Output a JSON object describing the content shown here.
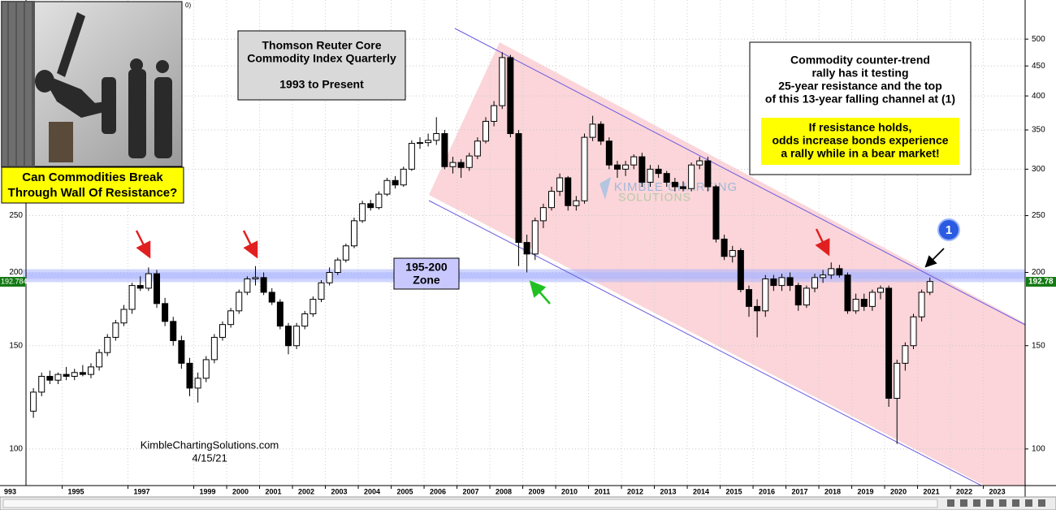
{
  "chart_data": {
    "type": "candlestick",
    "corner_text": "0)",
    "title_lines": [
      "Thomson Reuter Core",
      "Commodity Index Quarterly"
    ],
    "subtitle": "1993 to Present",
    "caption_lines": [
      "Can Commodities Break",
      "Through Wall Of Resistance?"
    ],
    "note_lines": [
      "Commodity counter-trend",
      "rally has it testing",
      "25-year resistance and the top",
      "of this 13-year falling channel at (1)"
    ],
    "highlight_lines": [
      "If resistance holds,",
      "odds increase bonds experience",
      "a rally while in a bear market!"
    ],
    "zone": {
      "low": 195,
      "high": 200,
      "label_lines": [
        "195-200",
        "Zone"
      ]
    },
    "watermark_lines": [
      "KIMBLE CHARTING",
      "SOLUTIONS"
    ],
    "source": "KimbleChartingSolutions.com",
    "date": "4/15/21",
    "marker_label": "1",
    "last_value": 192.78,
    "last_value_left": 192.784,
    "log_scale": true,
    "grid": true,
    "up_color": "#ffffff",
    "down_color": "#000000",
    "xlim": [
      1993.9,
      2024.27
    ],
    "xticks": [
      {
        "value": 1993,
        "label": "993"
      },
      1995,
      1997,
      1999,
      2000,
      2001,
      2002,
      2003,
      2004,
      2005,
      2006,
      2007,
      2008,
      2009,
      2010,
      2011,
      2012,
      2013,
      2014,
      2015,
      2016,
      2017,
      2018,
      2019,
      2020,
      2021,
      2022,
      2023
    ],
    "ylim": [
      86.6,
      583
    ],
    "yticks": [
      100,
      150,
      200,
      250,
      300,
      350,
      400,
      450,
      500
    ],
    "x": [
      1994,
      1994.25,
      1994.5,
      1994.75,
      1995,
      1995.25,
      1995.5,
      1995.75,
      1996,
      1996.25,
      1996.5,
      1996.75,
      1997,
      1997.25,
      1997.5,
      1997.75,
      1998,
      1998.25,
      1998.5,
      1998.75,
      1999,
      1999.25,
      1999.5,
      1999.75,
      2000,
      2000.25,
      2000.5,
      2000.75,
      2001,
      2001.25,
      2001.5,
      2001.75,
      2002,
      2002.25,
      2002.5,
      2002.75,
      2003,
      2003.25,
      2003.5,
      2003.75,
      2004,
      2004.25,
      2004.5,
      2004.75,
      2005,
      2005.25,
      2005.5,
      2005.75,
      2006,
      2006.25,
      2006.5,
      2006.75,
      2007,
      2007.25,
      2007.5,
      2007.75,
      2008,
      2008.25,
      2008.5,
      2008.75,
      2009,
      2009.25,
      2009.5,
      2009.75,
      2010,
      2010.25,
      2010.5,
      2010.75,
      2011,
      2011.25,
      2011.5,
      2011.75,
      2012,
      2012.25,
      2012.5,
      2012.75,
      2013,
      2013.25,
      2013.5,
      2013.75,
      2014,
      2014.25,
      2014.5,
      2014.75,
      2015,
      2015.25,
      2015.5,
      2015.75,
      2016,
      2016.25,
      2016.5,
      2016.75,
      2017,
      2017.25,
      2017.5,
      2017.75,
      2018,
      2018.25,
      2018.5,
      2018.75,
      2019,
      2019.25,
      2019.5,
      2019.75,
      2020,
      2020.25,
      2020.5,
      2020.75,
      2021,
      2021.25
    ],
    "candles": {
      "open": [
        116,
        125,
        133,
        131,
        134,
        133,
        135,
        134,
        138,
        146,
        155,
        164,
        173,
        190,
        188,
        199,
        177,
        165,
        153,
        140,
        127,
        132,
        142,
        155,
        163,
        172,
        185,
        195,
        196,
        185,
        178,
        162,
        150,
        162,
        170,
        180,
        192,
        200,
        210,
        222,
        245,
        262,
        258,
        272,
        287,
        282,
        300,
        332,
        333,
        336,
        345,
        303,
        308,
        302,
        316,
        335,
        362,
        385,
        465,
        345,
        225,
        215,
        245,
        258,
        275,
        290,
        260,
        265,
        340,
        358,
        335,
        305,
        300,
        305,
        315,
        285,
        300,
        295,
        285,
        280,
        278,
        305,
        310,
        280,
        228,
        213,
        218,
        187,
        175,
        172,
        195,
        190,
        196,
        190,
        176,
        188,
        196,
        198,
        203,
        198,
        172,
        180,
        175,
        185,
        188,
        122,
        140,
        150,
        168,
        185
      ],
      "high": [
        127,
        135,
        136,
        135,
        138,
        137,
        139,
        140,
        148,
        157,
        166,
        176,
        192,
        197,
        204,
        202,
        181,
        168,
        156,
        143,
        135,
        144,
        157,
        165,
        174,
        187,
        197,
        205,
        200,
        188,
        180,
        164,
        164,
        172,
        182,
        194,
        204,
        212,
        224,
        248,
        265,
        266,
        275,
        290,
        292,
        303,
        336,
        340,
        345,
        368,
        350,
        315,
        312,
        320,
        340,
        368,
        392,
        475,
        470,
        350,
        232,
        248,
        262,
        280,
        295,
        292,
        270,
        345,
        370,
        362,
        340,
        310,
        310,
        318,
        320,
        305,
        305,
        298,
        290,
        286,
        308,
        315,
        315,
        282,
        232,
        222,
        220,
        190,
        180,
        198,
        198,
        199,
        200,
        192,
        190,
        199,
        202,
        208,
        206,
        200,
        184,
        184,
        187,
        190,
        190,
        142,
        152,
        170,
        187,
        196
      ],
      "low": [
        113,
        123,
        129,
        129,
        131,
        131,
        133,
        132,
        136,
        144,
        153,
        162,
        170,
        186,
        186,
        174,
        162,
        150,
        137,
        123,
        120,
        130,
        140,
        153,
        161,
        170,
        183,
        190,
        183,
        176,
        160,
        145,
        148,
        160,
        168,
        178,
        190,
        198,
        208,
        220,
        243,
        255,
        256,
        270,
        278,
        280,
        298,
        325,
        328,
        330,
        300,
        295,
        290,
        298,
        312,
        332,
        355,
        380,
        340,
        205,
        200,
        210,
        238,
        255,
        270,
        255,
        255,
        262,
        335,
        330,
        300,
        290,
        292,
        300,
        280,
        280,
        290,
        280,
        275,
        275,
        275,
        300,
        275,
        225,
        210,
        208,
        185,
        168,
        155,
        168,
        186,
        186,
        186,
        172,
        174,
        185,
        192,
        195,
        196,
        170,
        170,
        172,
        172,
        180,
        118,
        102,
        136,
        148,
        165,
        183
      ],
      "close": [
        125,
        133,
        131,
        134,
        133,
        135,
        134,
        138,
        146,
        155,
        164,
        173,
        190,
        188,
        199,
        177,
        165,
        153,
        140,
        127,
        132,
        142,
        155,
        163,
        172,
        185,
        195,
        196,
        185,
        178,
        162,
        150,
        162,
        170,
        180,
        192,
        200,
        210,
        222,
        245,
        262,
        258,
        272,
        287,
        282,
        300,
        332,
        333,
        336,
        345,
        303,
        308,
        302,
        316,
        335,
        362,
        385,
        465,
        345,
        225,
        215,
        245,
        258,
        275,
        290,
        260,
        265,
        340,
        358,
        335,
        305,
        300,
        305,
        315,
        285,
        300,
        295,
        285,
        280,
        278,
        305,
        310,
        280,
        228,
        213,
        218,
        187,
        175,
        172,
        195,
        190,
        196,
        190,
        176,
        188,
        196,
        198,
        203,
        198,
        172,
        180,
        175,
        185,
        188,
        122,
        140,
        150,
        168,
        185,
        193
      ]
    }
  }
}
